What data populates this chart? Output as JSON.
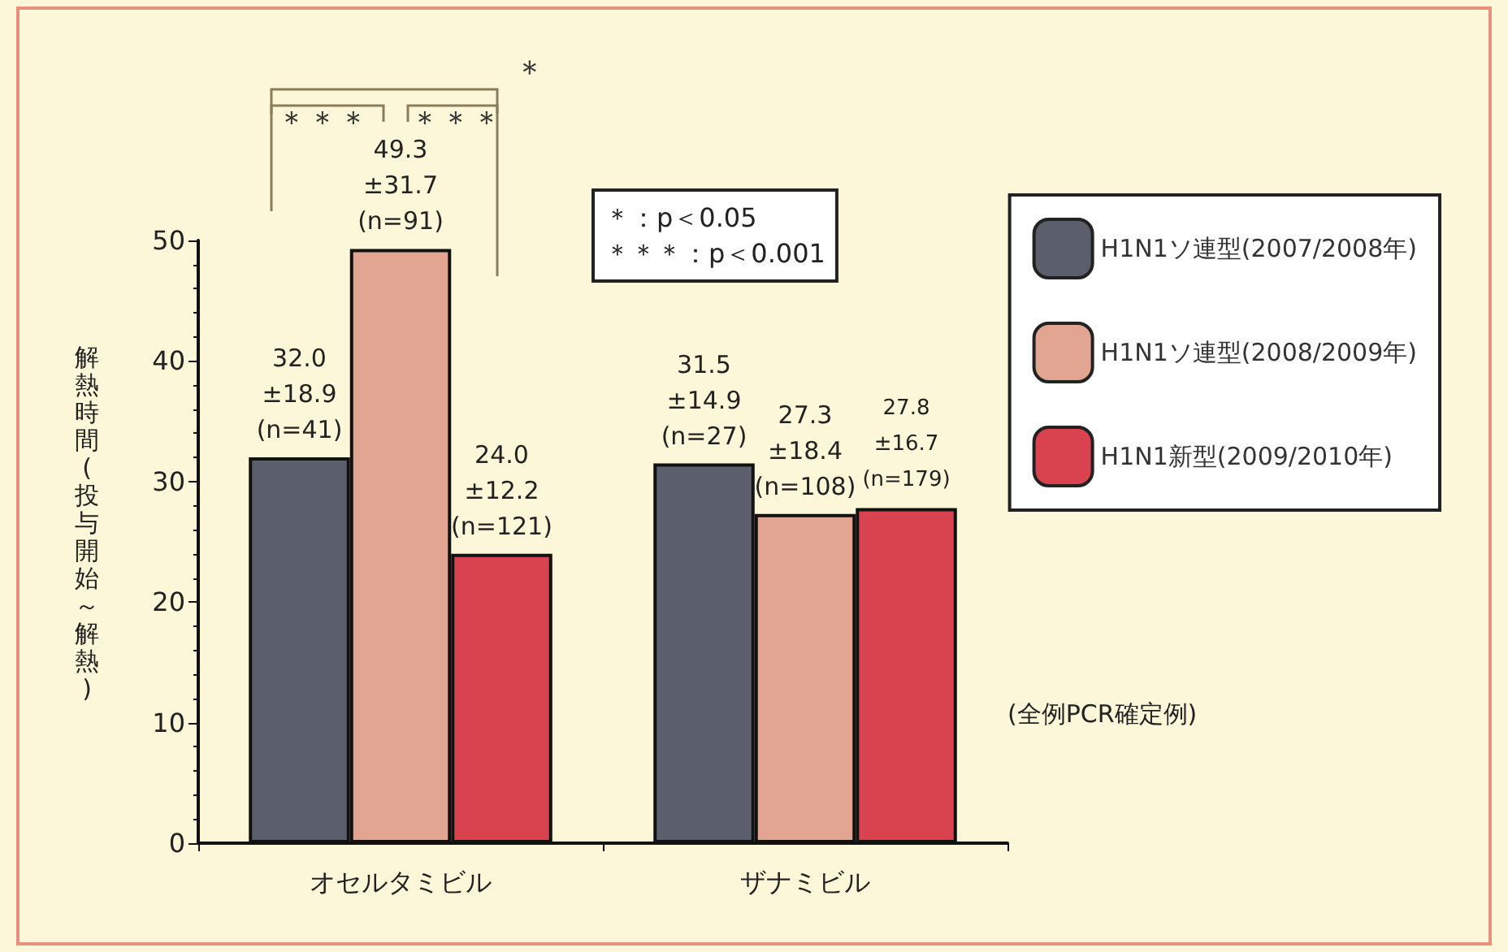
{
  "chart_data": {
    "type": "bar",
    "categories": [
      "オセルタミビル",
      "ザナミビル"
    ],
    "ylabel": "解熱時間(投与開始～解熱)",
    "ylim": [
      0,
      50
    ],
    "yticks": [
      0,
      10,
      20,
      30,
      40,
      50
    ],
    "series": [
      {
        "name": "H1N1ソ連型(2007/2008年)",
        "color": "#5b5e6b",
        "values": [
          32.0,
          31.5
        ],
        "value_labels": [
          "32.0\n±18.9\n(n=41)",
          "31.5\n±14.9\n(n=27)"
        ]
      },
      {
        "name": "H1N1ソ連型(2008/2009年)",
        "color": "#e2a592",
        "values": [
          49.3,
          27.3
        ],
        "value_labels": [
          "49.3\n±31.7\n(n=91)",
          "27.3\n±18.4\n(n=108)"
        ]
      },
      {
        "name": "H1N1新型(2009/2010年)",
        "color": "#d9424f",
        "values": [
          24.0,
          27.8
        ],
        "value_labels": [
          "24.0\n±12.2\n(n=121)",
          "27.8\n±16.7\n(n=179)"
        ]
      }
    ],
    "annotations": [
      "＊",
      "＊＊＊",
      "＊＊＊",
      "＊：p＜0.05\n＊＊＊：p＜0.001",
      "(全例PCR確定例)"
    ],
    "legend": "top right",
    "grid": false
  }
}
